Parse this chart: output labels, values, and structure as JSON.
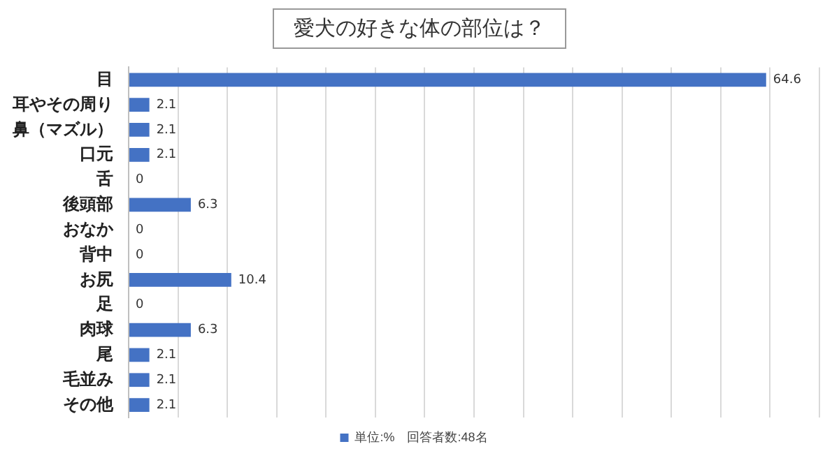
{
  "chart_data": {
    "type": "bar",
    "orientation": "horizontal",
    "title": "愛犬の好きな体の部位は？",
    "categories": [
      "目",
      "耳やその周り",
      "鼻（マズル）",
      "口元",
      "舌",
      "後頭部",
      "おなか",
      "背中",
      "お尻",
      "足",
      "肉球",
      "尾",
      "毛並み",
      "その他"
    ],
    "series": [
      {
        "name": "単位:%　回答者数:48名",
        "color": "#4472c4",
        "values": [
          64.6,
          2.1,
          2.1,
          2.1,
          0,
          6.3,
          0,
          0,
          10.4,
          0,
          6.3,
          2.1,
          2.1,
          2.1
        ]
      }
    ],
    "xlim": [
      0,
      70
    ],
    "xticks": [
      {
        "value": 0,
        "label": null
      },
      {
        "value": 5,
        "label": null
      },
      {
        "value": 10,
        "label": null
      },
      {
        "value": 15,
        "label": null
      },
      {
        "value": 20,
        "label": null
      },
      {
        "value": 25,
        "label": null
      },
      {
        "value": 30,
        "label": null
      },
      {
        "value": 35,
        "label": null
      },
      {
        "value": 40,
        "label": null
      },
      {
        "value": 45,
        "label": null
      },
      {
        "value": 50,
        "label": null
      },
      {
        "value": 55,
        "label": null
      },
      {
        "value": 60,
        "label": null
      },
      {
        "value": 65,
        "label": null
      },
      {
        "value": 70,
        "label": null
      }
    ],
    "tick_labels": "y",
    "grid": "x",
    "legend": "bottom",
    "data_labels": true
  }
}
